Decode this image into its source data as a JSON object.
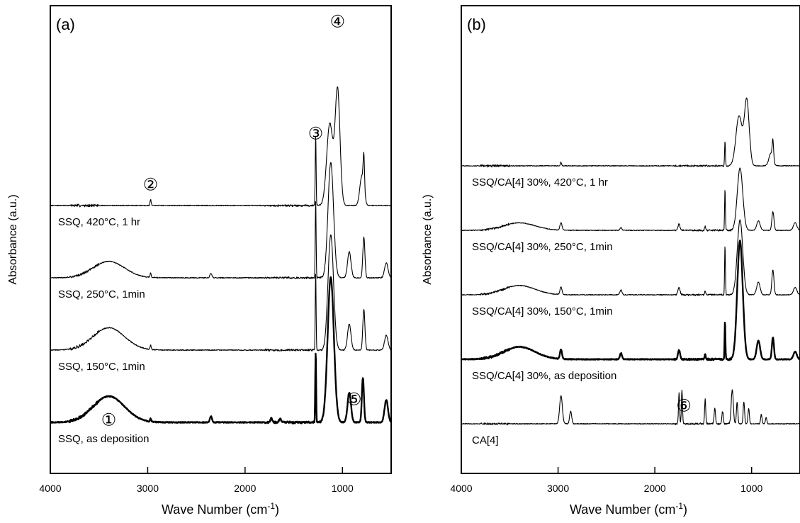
{
  "chart_data": [
    {
      "panel": "(a)",
      "type": "line",
      "xlabel": "Wave Number (cm",
      "xlabel_sup": "-1",
      "xlabel_end": ")",
      "ylabel": "Absorbance (a.u.)",
      "xlim": [
        4000,
        500
      ],
      "x_reversed": true,
      "xticks": [
        "4000",
        "3000",
        "2000",
        "1000"
      ],
      "peak_markers": [
        {
          "label": "①",
          "x": 3400
        },
        {
          "label": "②",
          "x": 2970
        },
        {
          "label": "③",
          "x": 1275
        },
        {
          "label": "④",
          "x": 1050
        },
        {
          "label": "⑤",
          "x": 880
        }
      ],
      "series": [
        {
          "label": "SSQ, 420°C, 1 hr",
          "offset": 3.0,
          "thick": false,
          "peaks": [
            [
              2970,
              0.08,
              8
            ],
            [
              1275,
              0.95,
              6
            ],
            [
              1130,
              1.1,
              45
            ],
            [
              1050,
              1.55,
              35
            ],
            [
              800,
              0.4,
              30
            ],
            [
              780,
              0.45,
              10
            ]
          ],
          "humps": []
        },
        {
          "label": "SSQ, 250°C, 1min",
          "offset": 2.0,
          "thick": false,
          "peaks": [
            [
              2970,
              0.06,
              8
            ],
            [
              2350,
              0.06,
              15
            ],
            [
              1275,
              1.05,
              6
            ],
            [
              1120,
              1.55,
              40
            ],
            [
              930,
              0.35,
              25
            ],
            [
              780,
              0.55,
              15
            ],
            [
              550,
              0.2,
              25
            ]
          ],
          "humps": [
            [
              3400,
              0.22,
              230
            ]
          ]
        },
        {
          "label": "SSQ, 150°C, 1min",
          "offset": 1.0,
          "thick": false,
          "peaks": [
            [
              2970,
              0.06,
              8
            ],
            [
              1275,
              1.05,
              6
            ],
            [
              1120,
              1.55,
              40
            ],
            [
              930,
              0.35,
              25
            ],
            [
              780,
              0.55,
              15
            ],
            [
              550,
              0.2,
              25
            ]
          ],
          "humps": [
            [
              3400,
              0.3,
              230
            ]
          ]
        },
        {
          "label": "SSQ, as deposition",
          "offset": 0.0,
          "thick": true,
          "peaks": [
            [
              2970,
              0.04,
              8
            ],
            [
              2350,
              0.08,
              15
            ],
            [
              1730,
              0.05,
              15
            ],
            [
              1640,
              0.05,
              15
            ],
            [
              1275,
              0.95,
              6
            ],
            [
              1120,
              1.95,
              45
            ],
            [
              930,
              0.4,
              25
            ],
            [
              790,
              0.6,
              15
            ],
            [
              550,
              0.3,
              25
            ]
          ],
          "humps": [
            [
              3400,
              0.35,
              230
            ]
          ]
        }
      ]
    },
    {
      "panel": "(b)",
      "type": "line",
      "xlabel": "Wave Number (cm",
      "xlabel_sup": "-1",
      "xlabel_end": ")",
      "ylabel": "Absorbance (a.u.)",
      "xlim": [
        4000,
        500
      ],
      "x_reversed": true,
      "xticks": [
        "4000",
        "3000",
        "2000",
        "1000"
      ],
      "peak_markers": [
        {
          "label": "⑥",
          "x": 1700
        }
      ],
      "series": [
        {
          "label": "SSQ/CA[4] 30%, 420°C, 1 hr",
          "offset": 4.0,
          "thick": false,
          "peaks": [
            [
              2970,
              0.06,
              8
            ],
            [
              1275,
              0.4,
              6
            ],
            [
              1130,
              0.8,
              45
            ],
            [
              1050,
              1.05,
              35
            ],
            [
              800,
              0.2,
              30
            ],
            [
              780,
              0.3,
              10
            ]
          ],
          "humps": []
        },
        {
          "label": "SSQ/CA[4] 30%, 250°C, 1min",
          "offset": 3.0,
          "thick": false,
          "peaks": [
            [
              2970,
              0.12,
              15
            ],
            [
              2350,
              0.04,
              15
            ],
            [
              1750,
              0.1,
              15
            ],
            [
              1480,
              0.06,
              8
            ],
            [
              1275,
              0.65,
              6
            ],
            [
              1120,
              1.0,
              40
            ],
            [
              930,
              0.15,
              25
            ],
            [
              780,
              0.3,
              15
            ],
            [
              550,
              0.12,
              25
            ]
          ],
          "humps": [
            [
              3400,
              0.12,
              230
            ]
          ]
        },
        {
          "label": "SSQ/CA[4] 30%, 150°C, 1min",
          "offset": 2.0,
          "thick": false,
          "peaks": [
            [
              2970,
              0.12,
              15
            ],
            [
              2350,
              0.08,
              15
            ],
            [
              1750,
              0.12,
              15
            ],
            [
              1480,
              0.06,
              8
            ],
            [
              1275,
              0.8,
              6
            ],
            [
              1120,
              1.2,
              40
            ],
            [
              930,
              0.2,
              25
            ],
            [
              780,
              0.4,
              15
            ],
            [
              550,
              0.12,
              25
            ]
          ],
          "humps": [
            [
              3400,
              0.15,
              230
            ]
          ]
        },
        {
          "label": "SSQ/CA[4] 30%, as deposition",
          "offset": 1.0,
          "thick": true,
          "peaks": [
            [
              2970,
              0.15,
              15
            ],
            [
              2350,
              0.1,
              15
            ],
            [
              1750,
              0.15,
              15
            ],
            [
              1480,
              0.08,
              8
            ],
            [
              1275,
              0.6,
              6
            ],
            [
              1120,
              1.9,
              40
            ],
            [
              930,
              0.3,
              25
            ],
            [
              780,
              0.35,
              15
            ],
            [
              550,
              0.12,
              25
            ]
          ],
          "humps": [
            [
              3400,
              0.2,
              230
            ]
          ]
        },
        {
          "label": "CA[4]",
          "offset": 0.0,
          "thick": false,
          "peaks": [
            [
              2970,
              0.45,
              20
            ],
            [
              2870,
              0.2,
              15
            ],
            [
              1750,
              0.5,
              8
            ],
            [
              1720,
              0.55,
              8
            ],
            [
              1480,
              0.4,
              8
            ],
            [
              1380,
              0.25,
              10
            ],
            [
              1300,
              0.2,
              10
            ],
            [
              1200,
              0.55,
              15
            ],
            [
              1150,
              0.35,
              10
            ],
            [
              1080,
              0.35,
              10
            ],
            [
              1030,
              0.25,
              10
            ],
            [
              900,
              0.15,
              10
            ],
            [
              850,
              0.1,
              10
            ]
          ],
          "humps": []
        }
      ]
    }
  ]
}
